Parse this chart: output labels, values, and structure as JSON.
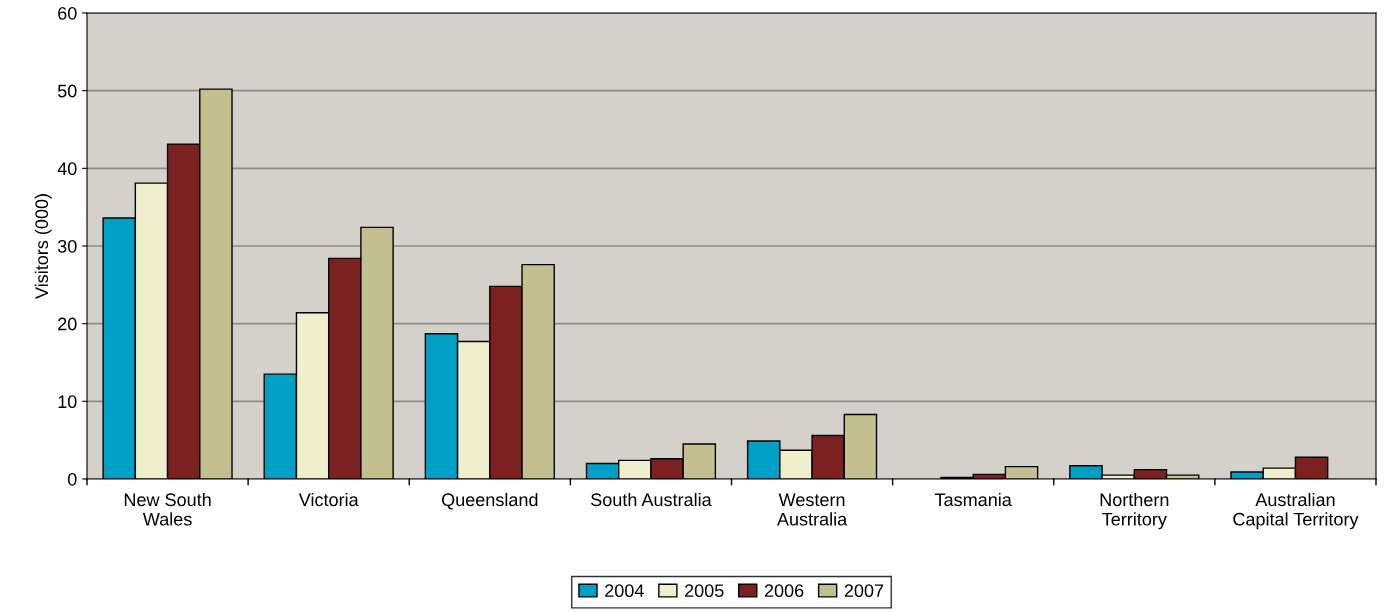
{
  "chart_data": {
    "type": "bar",
    "ylabel": "Visitors (000)",
    "categories": [
      "New South\nWales",
      "Victoria",
      "Queensland",
      "South Australia",
      "Western\nAustralia",
      "Tasmania",
      "Northern\nTerritory",
      "Australian\nCapital Territory"
    ],
    "series": [
      {
        "name": "2004",
        "color": "#00a0c6",
        "values": [
          33.6,
          13.5,
          18.7,
          2.0,
          4.9,
          0,
          1.7,
          0.9
        ]
      },
      {
        "name": "2005",
        "color": "#f0efcc",
        "values": [
          38.1,
          21.4,
          17.7,
          2.4,
          3.7,
          0.2,
          0.5,
          1.4
        ]
      },
      {
        "name": "2006",
        "color": "#7b2221",
        "values": [
          43.1,
          28.4,
          24.8,
          2.6,
          5.6,
          0.6,
          1.2,
          2.8
        ]
      },
      {
        "name": "2007",
        "color": "#c3bf8f",
        "values": [
          50.2,
          32.4,
          27.6,
          4.5,
          8.3,
          1.6,
          0.5,
          0
        ]
      }
    ],
    "ylim": [
      0,
      60
    ],
    "yticks": [
      0,
      10,
      20,
      30,
      40,
      50,
      60
    ],
    "grid": "y",
    "legend": "bottom"
  }
}
